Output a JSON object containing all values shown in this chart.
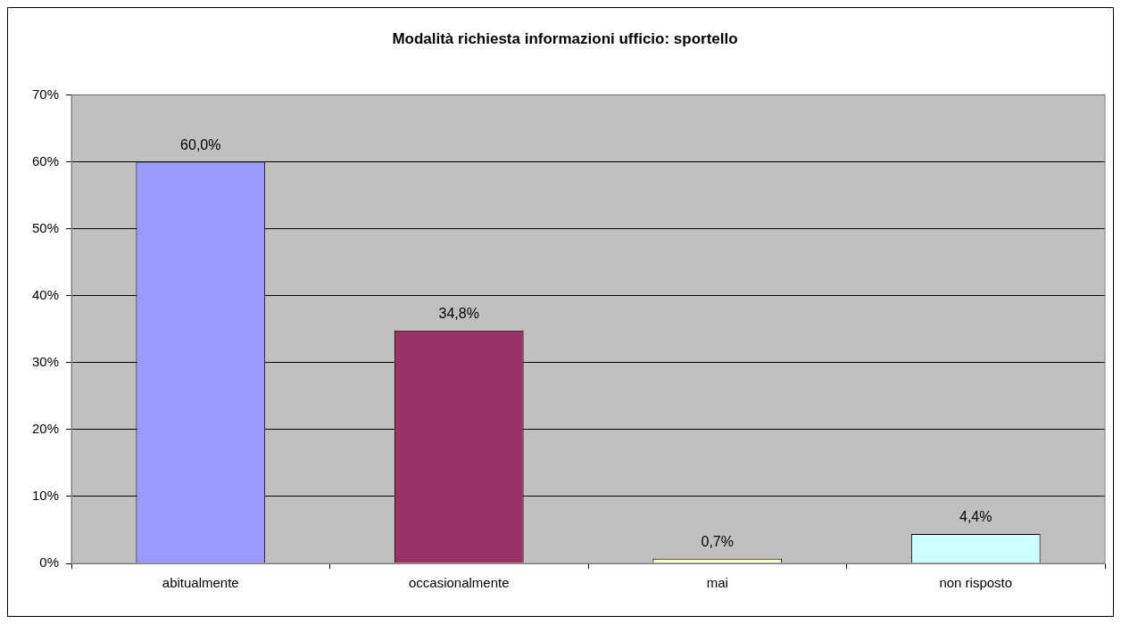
{
  "chart_data": {
    "type": "bar",
    "title": "Modalità richiesta informazioni ufficio: sportello",
    "categories": [
      "abitualmente",
      "occasionalmente",
      "mai",
      "non risposto"
    ],
    "values": [
      60.0,
      34.8,
      0.7,
      4.4
    ],
    "colors": [
      "#9999ff",
      "#993366",
      "#ffffcc",
      "#ccffff"
    ],
    "value_labels": [
      "60,0%",
      "34,8%",
      "0,7%",
      "4,4%"
    ],
    "ylim": [
      0,
      70
    ],
    "yticks": [
      {
        "value": 0,
        "label": "0%"
      },
      {
        "value": 10,
        "label": "10%"
      },
      {
        "value": 20,
        "label": "20%"
      },
      {
        "value": 30,
        "label": "30%"
      },
      {
        "value": 40,
        "label": "40%"
      },
      {
        "value": 50,
        "label": "50%"
      },
      {
        "value": 60,
        "label": "60%"
      },
      {
        "value": 70,
        "label": "70%"
      }
    ],
    "grid": "y",
    "legend": false
  }
}
